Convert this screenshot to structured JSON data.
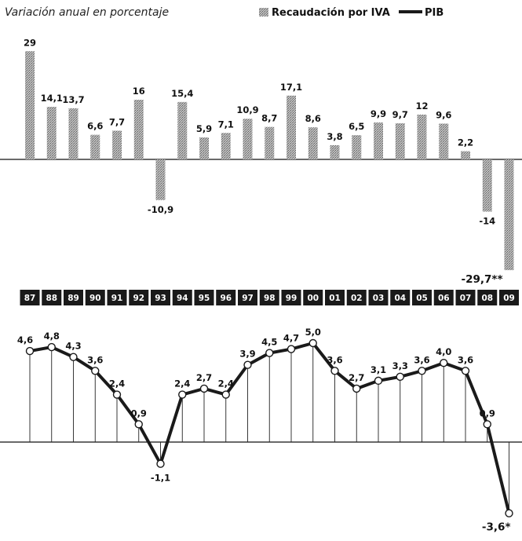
{
  "subtitle": "Variación anual en porcentaje",
  "legend": {
    "iva_label": "Recaudación por IVA",
    "pib_label": "PIB"
  },
  "colors": {
    "bar": "#8a8a8a",
    "line": "#1a1a1a",
    "year_box": "#1a1a1a",
    "marker_fill": "#ffffff"
  },
  "chart_data": [
    {
      "type": "bar",
      "series": [
        {
          "name": "Recaudación por IVA",
          "values": [
            29,
            14.1,
            13.7,
            6.6,
            7.7,
            16,
            -10.9,
            15.4,
            5.9,
            7.1,
            10.9,
            8.7,
            17.1,
            8.6,
            3.8,
            6.5,
            9.9,
            9.7,
            12,
            9.6,
            2.2,
            -14,
            -29.7
          ]
        }
      ],
      "categories": [
        "87",
        "88",
        "89",
        "90",
        "91",
        "92",
        "93",
        "94",
        "95",
        "96",
        "97",
        "98",
        "99",
        "00",
        "01",
        "02",
        "03",
        "04",
        "05",
        "06",
        "07",
        "08",
        "09"
      ],
      "labels": [
        "29",
        "14,1",
        "13,7",
        "6,6",
        "7,7",
        "16",
        "-10,9",
        "15,4",
        "5,9",
        "7,1",
        "10,9",
        "8,7",
        "17,1",
        "8,6",
        "3,8",
        "6,5",
        "9,9",
        "9,7",
        "12",
        "9,6",
        "2,2",
        "-14",
        "-29,7**"
      ],
      "ylim": [
        -31,
        30
      ]
    },
    {
      "type": "line",
      "series": [
        {
          "name": "PIB",
          "values": [
            4.6,
            4.8,
            4.3,
            3.6,
            2.4,
            0.9,
            -1.1,
            2.4,
            2.7,
            2.4,
            3.9,
            4.5,
            4.7,
            5.0,
            3.6,
            2.7,
            3.1,
            3.3,
            3.6,
            4.0,
            3.6,
            0.9,
            -3.6
          ]
        }
      ],
      "categories": [
        "87",
        "88",
        "89",
        "90",
        "91",
        "92",
        "93",
        "94",
        "95",
        "96",
        "97",
        "98",
        "99",
        "00",
        "01",
        "02",
        "03",
        "04",
        "05",
        "06",
        "07",
        "08",
        "09"
      ],
      "labels": [
        "4,6",
        "4,8",
        "4,3",
        "3,6",
        "2,4",
        "0,9",
        "-1,1",
        "2,4",
        "2,7",
        "2,4",
        "3,9",
        "4,5",
        "4,7",
        "5,0",
        "3,6",
        "2,7",
        "3,1",
        "3,3",
        "3,6",
        "4,0",
        "3,6",
        "0,9",
        "-3,6*"
      ],
      "ylim": [
        -4.2,
        5.6
      ]
    }
  ]
}
